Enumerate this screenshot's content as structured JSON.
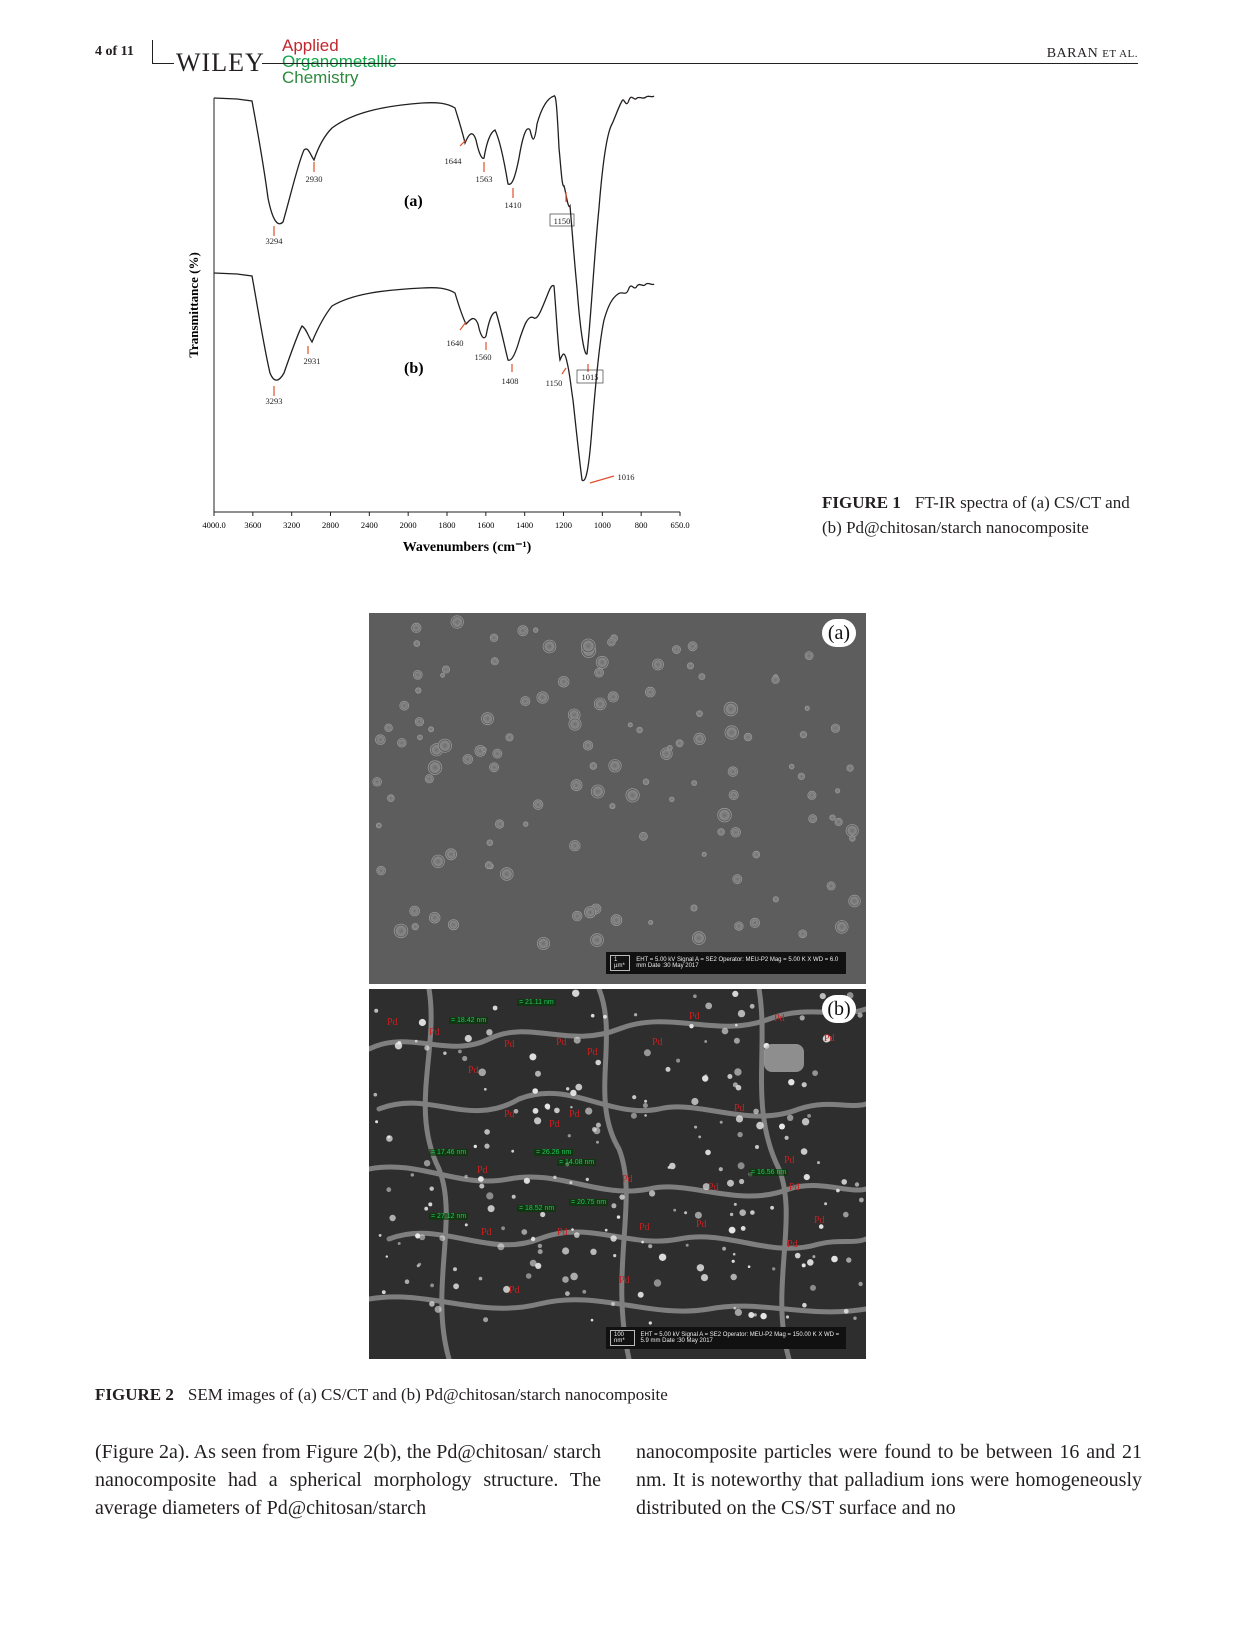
{
  "header": {
    "page": "4 of 11",
    "publisher": "WILEY",
    "journal": [
      "Applied",
      "Organometallic",
      "Chemistry"
    ],
    "authors_main": "BARAN",
    "authors_etal": "ET AL."
  },
  "figure1": {
    "caption_label": "FIGURE 1",
    "caption_text": "FT-IR spectra of (a) CS/CT and (b) Pd@chitosan/starch nanocomposite",
    "chart_data": {
      "type": "line",
      "xlabel": "Wavenumbers (cm⁻¹)",
      "ylabel": "Transmittance (%)",
      "xlim": [
        4000,
        650
      ],
      "x_ticks": [
        "4000.0",
        "3600",
        "3200",
        "2800",
        "2400",
        "2000",
        "1800",
        "1600",
        "1400",
        "1200",
        "1000",
        "800",
        "650.0"
      ],
      "series": [
        {
          "name": "(a)",
          "peaks": [
            3294,
            2930,
            1644,
            1563,
            1410,
            1150
          ]
        },
        {
          "name": "(b)",
          "peaks": [
            3293,
            2931,
            1640,
            1560,
            1408,
            1150,
            1015,
            1016
          ]
        }
      ]
    }
  },
  "figure2": {
    "caption_label": "FIGURE 2",
    "caption_text": "SEM images of (a) CS/CT and (b) Pd@chitosan/starch nanocomposite",
    "panel_a_label": "(a)",
    "panel_b_label": "(b)",
    "panel_a_scale": "1 µm*",
    "panel_b_scale": "100 nm*",
    "panel_a_info": "EHT = 5.00 kV  Signal A = SE2  Operator: MEU-P2  Mag = 5.00 K X  WD = 6.0 mm  Date :30 May 2017",
    "panel_b_info": "EHT = 5.00 kV  Signal A = SE2  Operator: MEU-P2  Mag = 150.00 K X  WD = 5.9 mm  Date :30 May 2017",
    "pd_label": "Pd",
    "measurements": [
      "21.11 nm",
      "18.42 nm",
      "17.46 nm",
      "26.26 nm",
      "14.08 nm",
      "16.56 nm",
      "20.75 nm",
      "18.52 nm",
      "27.12 nm"
    ]
  },
  "body": {
    "col1": "(Figure 2a). As seen from Figure 2(b), the Pd@chitosan/ starch nanocomposite had a spherical morphology structure. The average diameters of Pd@chitosan/starch",
    "col2": "nanocomposite particles were found to be between 16 and 21 nm. It is noteworthy that palladium ions were homogeneously distributed on the CS/ST surface and no"
  },
  "colors": {
    "peak_marker": "#e0502a",
    "measure": "#22c55e",
    "pd_label": "#cc1f1f"
  }
}
